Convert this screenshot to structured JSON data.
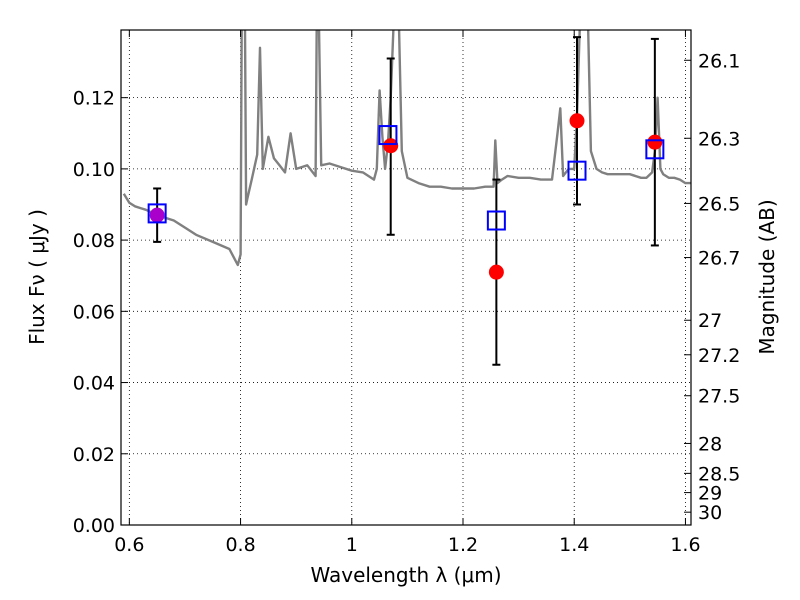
{
  "chart_data": {
    "type": "scatter",
    "xlabel": "Wavelength  λ (μm)",
    "ylabel": "Flux  Fν  ( μJy )",
    "ylabel_right": "Magnitude (AB)",
    "xlim": [
      0.585,
      1.61
    ],
    "ylim": [
      0.0,
      0.139
    ],
    "grid": true,
    "x_ticks": [
      {
        "value": 0.6,
        "label": "0.6"
      },
      {
        "value": 0.8,
        "label": "0.8"
      },
      {
        "value": 1.0,
        "label": "1"
      },
      {
        "value": 1.2,
        "label": "1.2"
      },
      {
        "value": 1.4,
        "label": "1.4"
      },
      {
        "value": 1.6,
        "label": "1.6"
      }
    ],
    "y_ticks": [
      {
        "value": 0.0,
        "label": "0.00"
      },
      {
        "value": 0.02,
        "label": "0.02"
      },
      {
        "value": 0.04,
        "label": "0.04"
      },
      {
        "value": 0.06,
        "label": "0.06"
      },
      {
        "value": 0.08,
        "label": "0.08"
      },
      {
        "value": 0.1,
        "label": "0.10"
      },
      {
        "value": 0.12,
        "label": "0.12"
      }
    ],
    "right_ticks": [
      {
        "flux": 0.1305,
        "label": "26.1"
      },
      {
        "flux": 0.1086,
        "label": "26.3"
      },
      {
        "flux": 0.0903,
        "label": "26.5"
      },
      {
        "flux": 0.0751,
        "label": "26.7"
      },
      {
        "flux": 0.0575,
        "label": "27"
      },
      {
        "flux": 0.0478,
        "label": "27.2"
      },
      {
        "flux": 0.0363,
        "label": "27.5"
      },
      {
        "flux": 0.0229,
        "label": "28"
      },
      {
        "flux": 0.0145,
        "label": "28.5"
      },
      {
        "flux": 0.0091,
        "label": "29"
      },
      {
        "flux": 0.0036,
        "label": "30"
      }
    ],
    "series": [
      {
        "kind": "model_spectrum",
        "color": "#808080",
        "x": [
          0.59,
          0.6,
          0.61,
          0.62,
          0.63,
          0.65,
          0.68,
          0.7,
          0.72,
          0.75,
          0.78,
          0.79,
          0.795,
          0.8,
          0.802,
          0.804,
          0.806,
          0.808,
          0.81,
          0.812,
          0.82,
          0.83,
          0.835,
          0.84,
          0.85,
          0.86,
          0.87,
          0.88,
          0.89,
          0.9,
          0.92,
          0.935,
          0.937,
          0.939,
          0.941,
          0.945,
          0.96,
          0.98,
          1.0,
          1.02,
          1.04,
          1.045,
          1.05,
          1.055,
          1.06,
          1.065,
          1.07,
          1.075,
          1.078,
          1.082,
          1.085,
          1.09,
          1.1,
          1.12,
          1.14,
          1.16,
          1.18,
          1.2,
          1.22,
          1.24,
          1.255,
          1.258,
          1.262,
          1.266,
          1.27,
          1.28,
          1.3,
          1.32,
          1.34,
          1.36,
          1.37,
          1.375,
          1.38,
          1.39,
          1.4,
          1.405,
          1.41,
          1.415,
          1.42,
          1.425,
          1.43,
          1.44,
          1.45,
          1.46,
          1.48,
          1.5,
          1.52,
          1.53,
          1.54,
          1.545,
          1.55,
          1.555,
          1.56,
          1.57,
          1.58,
          1.59,
          1.6,
          1.61
        ],
        "y": [
          0.093,
          0.0905,
          0.0895,
          0.089,
          0.0885,
          0.087,
          0.0855,
          0.0835,
          0.0815,
          0.0795,
          0.0775,
          0.0745,
          0.073,
          0.076,
          0.14,
          0.14,
          0.14,
          0.14,
          0.09,
          0.0915,
          0.097,
          0.104,
          0.134,
          0.1,
          0.109,
          0.103,
          0.101,
          0.099,
          0.11,
          0.1,
          0.101,
          0.098,
          0.14,
          0.14,
          0.14,
          0.101,
          0.1015,
          0.1005,
          0.0995,
          0.099,
          0.097,
          0.1,
          0.122,
          0.109,
          0.1,
          0.107,
          0.12,
          0.14,
          0.14,
          0.14,
          0.14,
          0.105,
          0.0975,
          0.096,
          0.095,
          0.095,
          0.0945,
          0.0945,
          0.0945,
          0.095,
          0.095,
          0.108,
          0.096,
          0.0965,
          0.097,
          0.098,
          0.0975,
          0.0975,
          0.097,
          0.097,
          0.11,
          0.117,
          0.098,
          0.1,
          0.1,
          0.115,
          0.14,
          0.14,
          0.14,
          0.14,
          0.105,
          0.1,
          0.099,
          0.0985,
          0.0985,
          0.0985,
          0.0975,
          0.0975,
          0.099,
          0.105,
          0.12,
          0.1,
          0.0985,
          0.0975,
          0.0975,
          0.097,
          0.096,
          0.096
        ]
      },
      {
        "kind": "model_photometry",
        "marker": "open-square",
        "color": "#0000ff",
        "x": [
          0.65,
          1.065,
          1.26,
          1.405,
          1.545
        ],
        "y": [
          0.0875,
          0.1095,
          0.0855,
          0.0995,
          0.1055
        ]
      },
      {
        "kind": "observed_photometry",
        "marker": "filled-circle",
        "color": "#ff0000",
        "x": [
          0.65,
          1.07,
          1.26,
          1.405,
          1.545
        ],
        "y": [
          0.087,
          0.1065,
          0.071,
          0.1135,
          0.1075
        ],
        "err_low": [
          0.0075,
          0.025,
          0.026,
          0.0235,
          0.029
        ],
        "err_high": [
          0.0075,
          0.0245,
          0.026,
          0.0235,
          0.029
        ],
        "point_colors": [
          "#aa00cc",
          "#ff0000",
          "#ff0000",
          "#ff0000",
          "#ff0000"
        ]
      }
    ]
  }
}
